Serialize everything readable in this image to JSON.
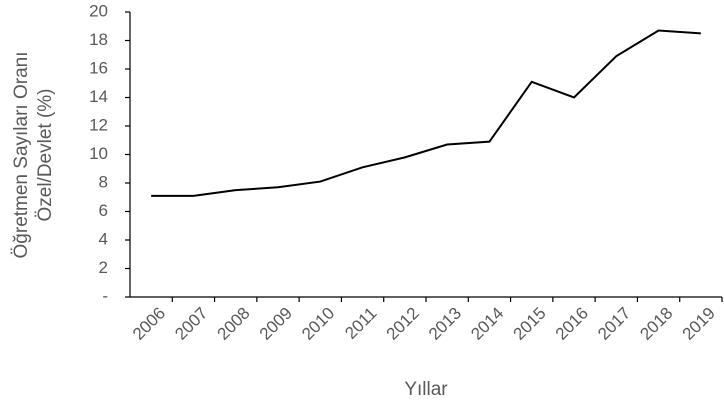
{
  "chart_data": {
    "type": "line",
    "ylabel": [
      "Öğretmen Sayıları Oranı",
      "Özel/Devlet (%)"
    ],
    "xlabel": "Yıllar",
    "categories": [
      "2006",
      "2007",
      "2008",
      "2009",
      "2010",
      "2011",
      "2012",
      "2013",
      "2014",
      "2015",
      "2016",
      "2017",
      "2018",
      "2019"
    ],
    "series": [
      {
        "color": "#000000",
        "values": [
          7.1,
          7.1,
          7.5,
          7.7,
          8.1,
          9.1,
          9.8,
          10.7,
          10.9,
          15.1,
          14.0,
          16.9,
          18.7,
          18.5
        ]
      }
    ],
    "ylim": [
      0,
      20
    ],
    "yticks": [
      {
        "value": 0,
        "label": "-"
      },
      2,
      4,
      6,
      8,
      10,
      12,
      14,
      16,
      18,
      20
    ],
    "grid": false
  }
}
